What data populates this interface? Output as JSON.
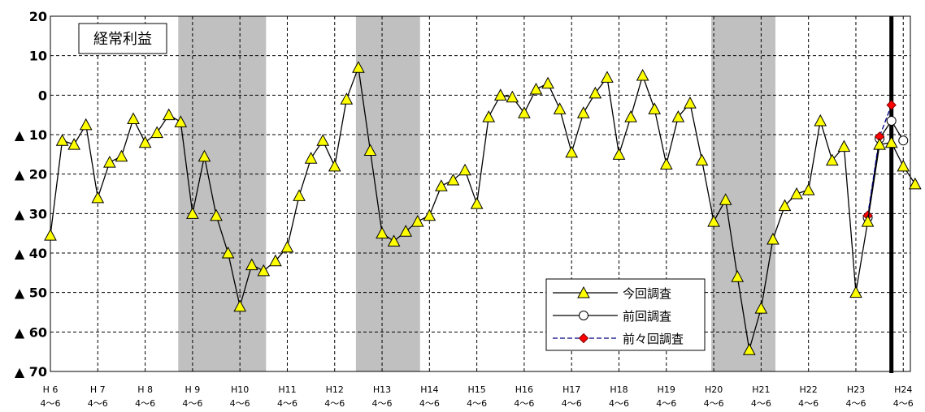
{
  "chart_data": {
    "type": "line",
    "title": "経常利益",
    "xlabel": "",
    "ylabel": "",
    "ylim": [
      -70,
      20
    ],
    "y_ticks": [
      {
        "value": 20,
        "label": "20"
      },
      {
        "value": 10,
        "label": "10"
      },
      {
        "value": 0,
        "label": "0"
      },
      {
        "value": -10,
        "label": "▲ 10"
      },
      {
        "value": -20,
        "label": "▲ 20"
      },
      {
        "value": -30,
        "label": "▲ 30"
      },
      {
        "value": -40,
        "label": "▲ 40"
      },
      {
        "value": -50,
        "label": "▲ 50"
      },
      {
        "value": -60,
        "label": "▲ 60"
      },
      {
        "value": -70,
        "label": "▲ 70"
      }
    ],
    "x_ticks": [
      {
        "year": "H 6",
        "quarter": "4～6"
      },
      {
        "year": "H 7",
        "quarter": "4～6"
      },
      {
        "year": "H 8",
        "quarter": "4～6"
      },
      {
        "year": "H 9",
        "quarter": "4～6"
      },
      {
        "year": "H10",
        "quarter": "4～6"
      },
      {
        "year": "H11",
        "quarter": "4～6"
      },
      {
        "year": "H12",
        "quarter": "4～6"
      },
      {
        "year": "H13",
        "quarter": "4～6"
      },
      {
        "year": "H14",
        "quarter": "4～6"
      },
      {
        "year": "H15",
        "quarter": "4～6"
      },
      {
        "year": "H16",
        "quarter": "4～6"
      },
      {
        "year": "H17",
        "quarter": "4～6"
      },
      {
        "year": "H18",
        "quarter": "4～6"
      },
      {
        "year": "H19",
        "quarter": "4～6"
      },
      {
        "year": "H20",
        "quarter": "4～6"
      },
      {
        "year": "H21",
        "quarter": "4～6"
      },
      {
        "year": "H22",
        "quarter": "4～6"
      },
      {
        "year": "H23",
        "quarter": "4～6"
      },
      {
        "year": "H24",
        "quarter": "4～6"
      }
    ],
    "x_unit": "quarter",
    "shaded_ranges": [
      [
        11,
        18
      ],
      [
        26,
        31
      ],
      [
        56,
        61
      ]
    ],
    "vertical_line_at": 71,
    "series": [
      {
        "name": "今回調査",
        "marker": "triangle",
        "color": "#ffff00",
        "line_color": "#000000",
        "dash": false,
        "start": 0,
        "values": [
          -35.5,
          -11.5,
          -12.5,
          -7.5,
          -26,
          -17,
          -15.5,
          -6,
          -12,
          -9.5,
          -5,
          -6.8,
          -30,
          -15.5,
          -30.5,
          -40,
          -53.5,
          -43,
          -44.5,
          -42,
          -38.5,
          -25.5,
          -16,
          -11.5,
          -18,
          -1,
          7,
          -14,
          -35,
          -37,
          -34.5,
          -32,
          -30.5,
          -23,
          -21.5,
          -19,
          -27.5,
          -5.5,
          0,
          -0.5,
          -4.5,
          1.5,
          3,
          -3.5,
          -14.5,
          -4.5,
          0.5,
          4.5,
          -15,
          -5.5,
          5,
          -3.5,
          -17.5,
          -5.5,
          -2,
          -16.5,
          -32,
          -26.5,
          -46,
          -64.5,
          -54,
          -36.5,
          -28,
          -25,
          -24,
          -6.5,
          -16.5,
          -13,
          -50,
          -32,
          -12.5,
          -12,
          -18,
          -22.5
        ]
      },
      {
        "name": "前回調査",
        "marker": "circle",
        "color": "#ffffff",
        "line_color": "#000000",
        "dash": false,
        "start": 69,
        "values": [
          -31,
          -11,
          -6.5,
          -11.5
        ]
      },
      {
        "name": "前々回調査",
        "marker": "diamond",
        "color": "#ff0000",
        "line_color": "#000080",
        "dash": true,
        "start": 69,
        "values": [
          -30.5,
          -10.5,
          -2.5
        ]
      }
    ],
    "grid": true,
    "legend_position": "bottom-right"
  }
}
